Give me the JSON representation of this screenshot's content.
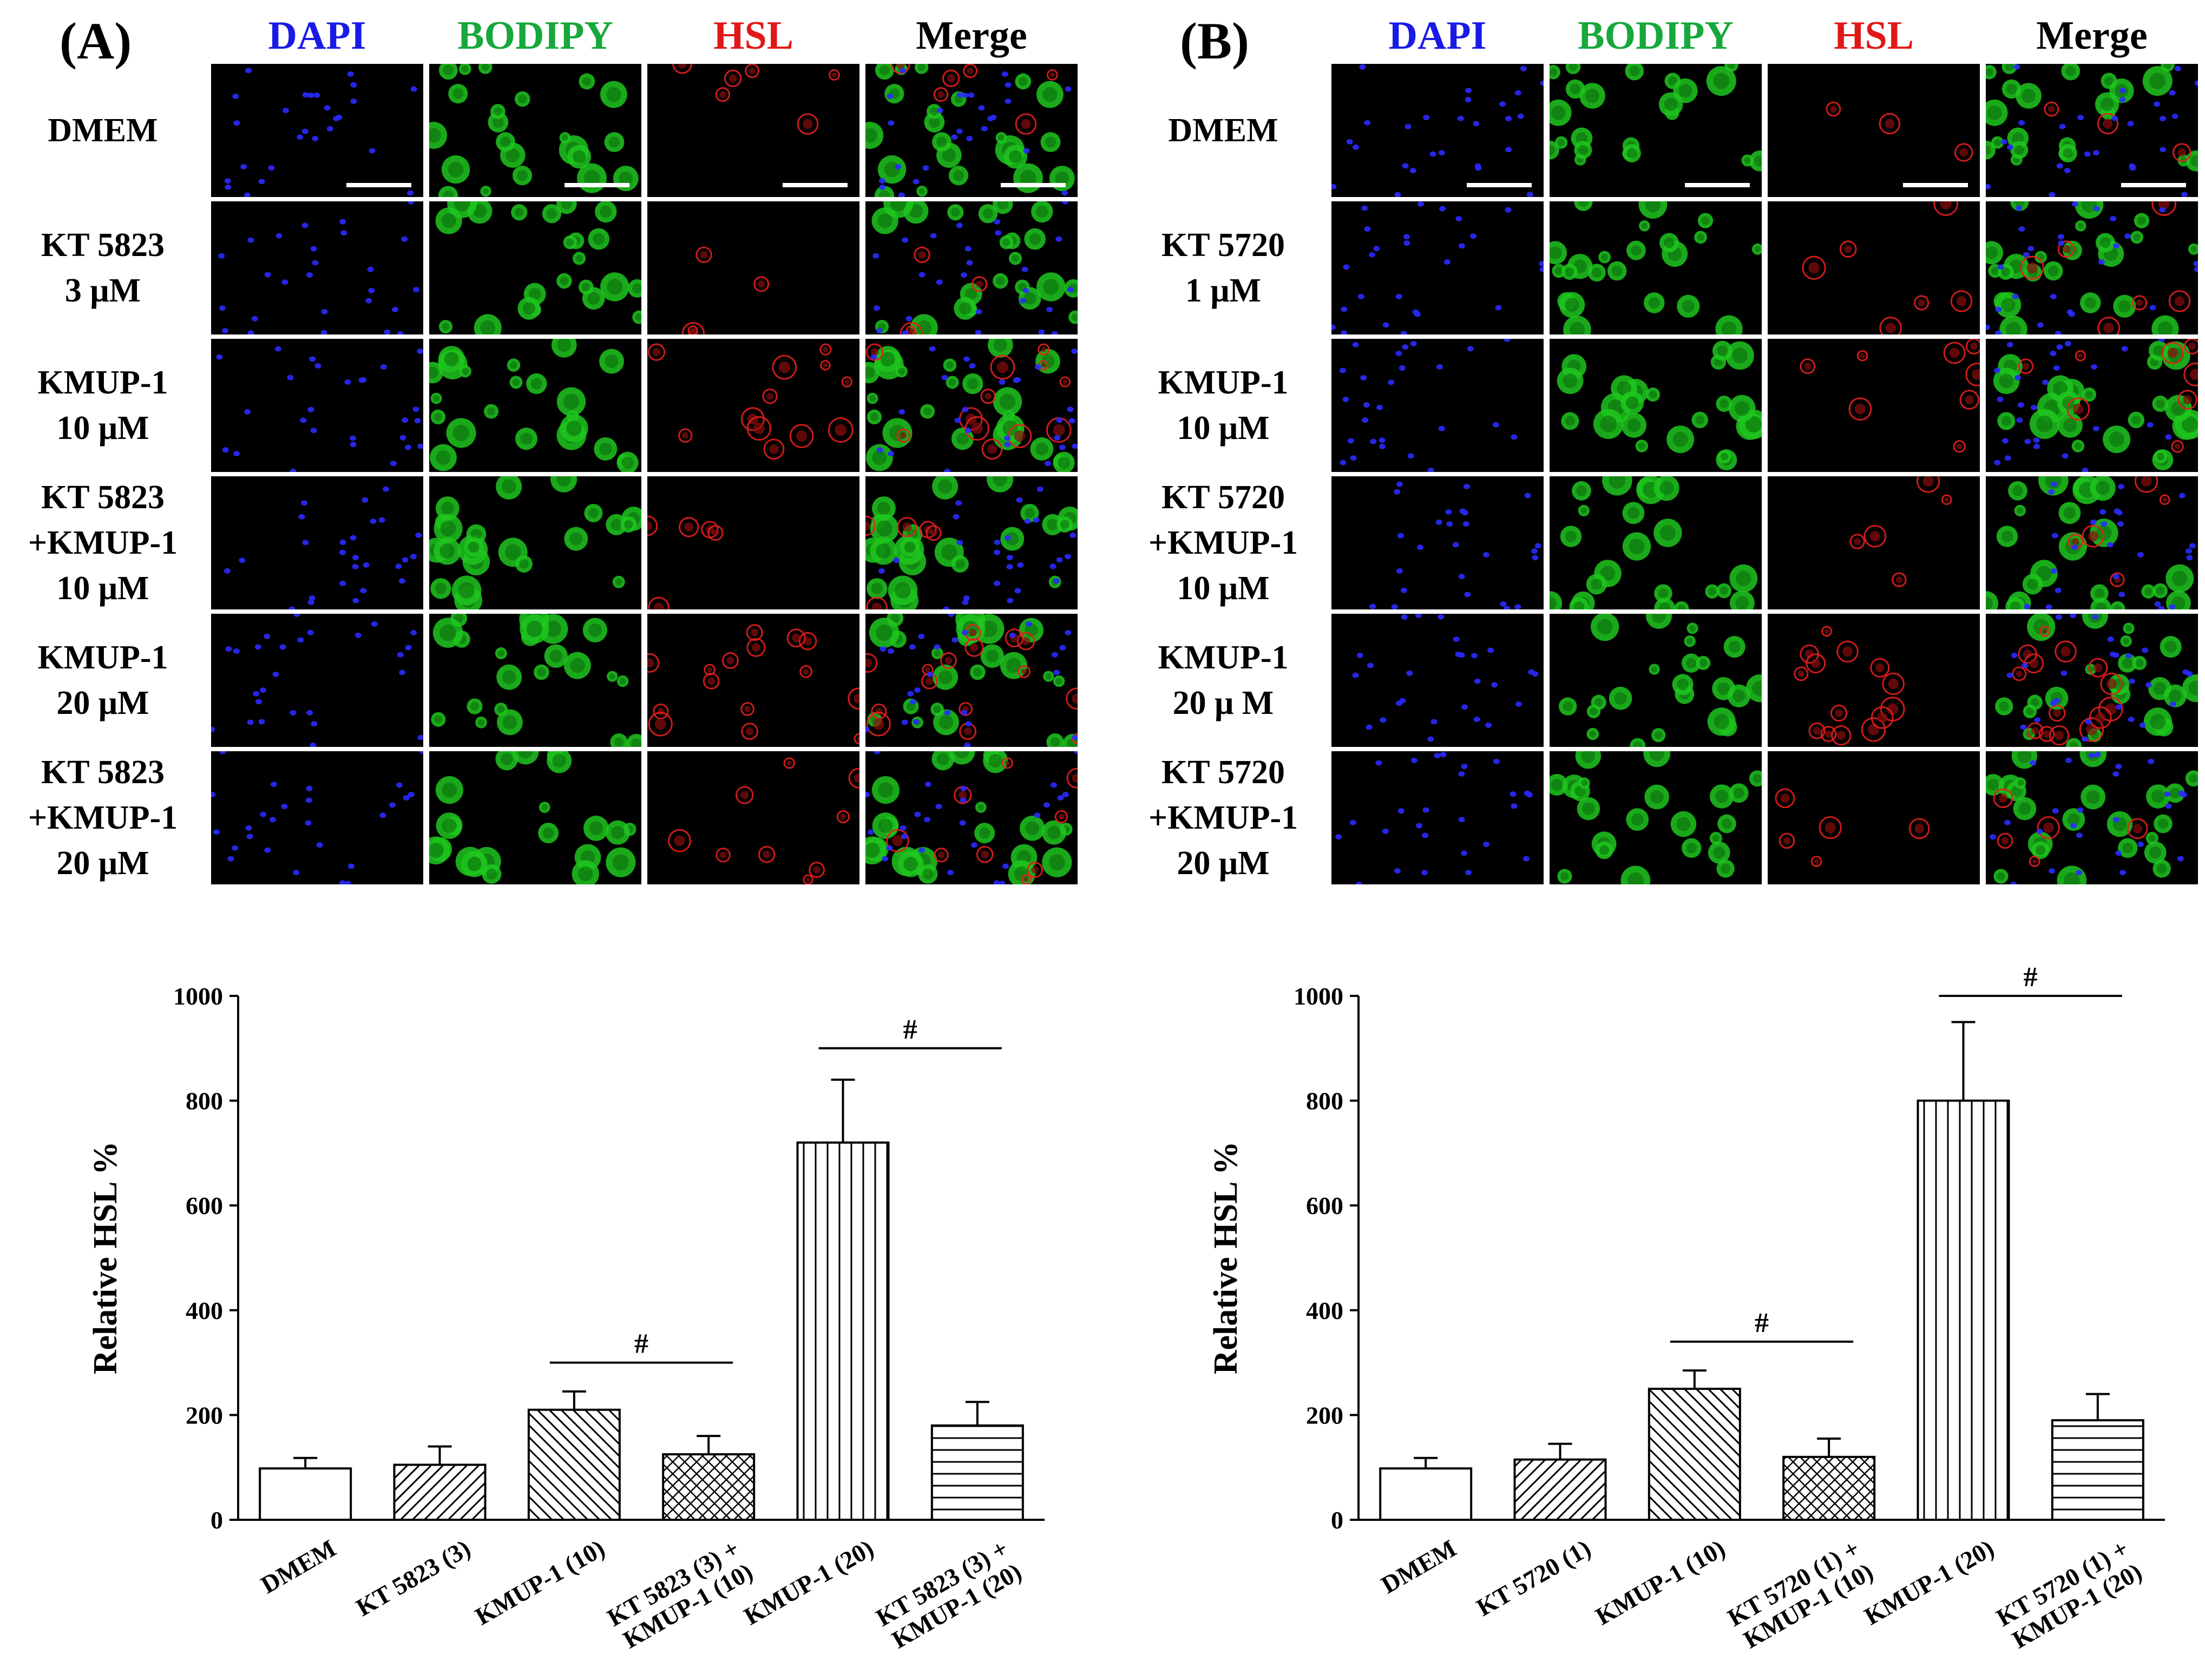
{
  "panels": [
    {
      "label": "(A)",
      "columns": [
        "DAPI",
        "BODIPY",
        "HSL",
        "Merge"
      ],
      "rows": [
        "DMEM",
        "KT 5823\n3 μM",
        "KMUP-1\n10 μM",
        "KT 5823\n+KMUP-1\n10 μM",
        "KMUP-1\n20 μM",
        "KT 5823\n+KMUP-1\n20 μM"
      ],
      "chart_data": {
        "type": "bar",
        "ylabel": "Relative HSL %",
        "ylim": [
          0,
          1000
        ],
        "yticks": [
          "0",
          "200",
          "400",
          "600",
          "800",
          "1000"
        ],
        "categories": [
          "DMEM",
          "KT 5823 (3)",
          "KMUP-1 (10)",
          "KT 5823 (3) +\nKMUP-1 (10)",
          "KMUP-1 (20)",
          "KT 5823 (3) +\nKMUP-1 (20)"
        ],
        "values": [
          98,
          105,
          210,
          125,
          720,
          180
        ],
        "errors": [
          20,
          35,
          35,
          35,
          120,
          45
        ],
        "patterns": [
          "none",
          "diag",
          "diag-back",
          "cross",
          "vert",
          "horiz"
        ],
        "significance": [
          {
            "from": 2,
            "to": 3,
            "label": "#",
            "y": 300
          },
          {
            "from": 4,
            "to": 5,
            "label": "#",
            "y": 900
          }
        ]
      }
    },
    {
      "label": "(B)",
      "columns": [
        "DAPI",
        "BODIPY",
        "HSL",
        "Merge"
      ],
      "rows": [
        "DMEM",
        "KT 5720\n1 μM",
        "KMUP-1\n10 μM",
        "KT 5720\n+KMUP-1\n10 μM",
        "KMUP-1\n20 μ M",
        "KT 5720\n+KMUP-1\n20 μM"
      ],
      "chart_data": {
        "type": "bar",
        "ylabel": "Relative HSL %",
        "ylim": [
          0,
          1000
        ],
        "yticks": [
          "0",
          "200",
          "400",
          "600",
          "800",
          "1000"
        ],
        "categories": [
          "DMEM",
          "KT 5720 (1)",
          "KMUP-1 (10)",
          "KT 5720 (1) +\nKMUP-1 (10)",
          "KMUP-1 (20)",
          "KT 5720 (1) +\nKMUP-1 (20)"
        ],
        "values": [
          98,
          115,
          250,
          120,
          800,
          190
        ],
        "errors": [
          20,
          30,
          35,
          35,
          150,
          50
        ],
        "patterns": [
          "none",
          "diag",
          "diag-back",
          "cross",
          "vert",
          "horiz"
        ],
        "significance": [
          {
            "from": 2,
            "to": 3,
            "label": "#",
            "y": 340
          },
          {
            "from": 4,
            "to": 5,
            "label": "#",
            "y": 1000
          }
        ]
      }
    }
  ],
  "colors": {
    "DAPI": "#1a1ae6",
    "BODIPY": "#16a83a",
    "HSL": "#e01818",
    "Merge": "#000000"
  }
}
